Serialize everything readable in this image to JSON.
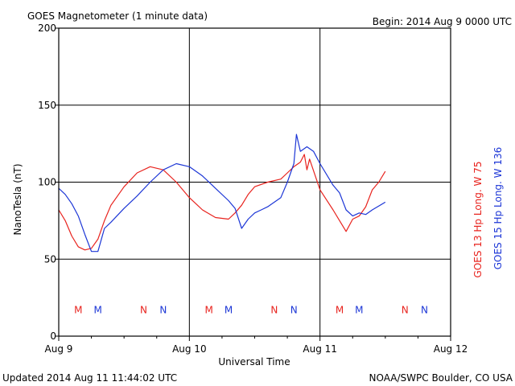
{
  "header": {
    "title": "GOES Magnetometer (1 minute data)",
    "begin": "Begin:  2014 Aug 9 0000 UTC"
  },
  "footer": {
    "updated": "Updated 2014 Aug 11 11:44:02 UTC",
    "source": "NOAA/SWPC Boulder, CO USA"
  },
  "chart_data": {
    "type": "line",
    "title": "GOES Magnetometer (1 minute data)",
    "xlabel": "Universal Time",
    "ylabel": "NanoTesla (nT)",
    "ylim": [
      0,
      200
    ],
    "yticks": [
      0,
      50,
      100,
      150,
      200
    ],
    "xlim_days": [
      0,
      3
    ],
    "xtick_labels": [
      "Aug 9",
      "Aug 10",
      "Aug 11",
      "Aug 12"
    ],
    "grid": true,
    "legend_placement": "right, vertical",
    "colors": {
      "red": "#e8231e",
      "blue": "#1c36d6"
    },
    "series": [
      {
        "name": "GOES 13 Hp  Long. W 75",
        "color": "#e8231e",
        "x": [
          0.0,
          0.05,
          0.1,
          0.15,
          0.2,
          0.25,
          0.3,
          0.35,
          0.4,
          0.5,
          0.6,
          0.7,
          0.8,
          0.9,
          1.0,
          1.1,
          1.2,
          1.3,
          1.35,
          1.4,
          1.45,
          1.5,
          1.6,
          1.7,
          1.75,
          1.8,
          1.85,
          1.88,
          1.9,
          1.92,
          2.0,
          2.1,
          2.15,
          2.2,
          2.25,
          2.3,
          2.35,
          2.4,
          2.45,
          2.5
        ],
        "y": [
          82,
          75,
          65,
          58,
          56,
          57,
          63,
          75,
          85,
          97,
          106,
          110,
          108,
          100,
          90,
          82,
          77,
          76,
          80,
          85,
          92,
          97,
          100,
          102,
          106,
          110,
          113,
          118,
          108,
          115,
          95,
          82,
          75,
          68,
          76,
          78,
          84,
          95,
          100,
          107
        ]
      },
      {
        "name": "GOES 15 Hp  Long. W 136",
        "color": "#1c36d6",
        "x": [
          0.0,
          0.05,
          0.1,
          0.15,
          0.2,
          0.25,
          0.3,
          0.35,
          0.4,
          0.5,
          0.6,
          0.7,
          0.8,
          0.9,
          1.0,
          1.1,
          1.2,
          1.3,
          1.35,
          1.4,
          1.45,
          1.5,
          1.55,
          1.6,
          1.7,
          1.75,
          1.8,
          1.82,
          1.85,
          1.9,
          1.95,
          2.0,
          2.1,
          2.15,
          2.2,
          2.25,
          2.3,
          2.35,
          2.4,
          2.5
        ],
        "y": [
          96,
          92,
          86,
          78,
          66,
          55,
          55,
          70,
          74,
          83,
          91,
          100,
          108,
          112,
          110,
          104,
          96,
          88,
          83,
          70,
          76,
          80,
          82,
          84,
          90,
          100,
          112,
          131,
          120,
          123,
          120,
          112,
          98,
          93,
          82,
          78,
          80,
          79,
          82,
          87
        ]
      }
    ],
    "markers": [
      {
        "label": "M",
        "x": 0.15,
        "color": "#e8231e"
      },
      {
        "label": "M",
        "x": 0.3,
        "color": "#1c36d6"
      },
      {
        "label": "N",
        "x": 0.65,
        "color": "#e8231e"
      },
      {
        "label": "N",
        "x": 0.8,
        "color": "#1c36d6"
      },
      {
        "label": "M",
        "x": 1.15,
        "color": "#e8231e"
      },
      {
        "label": "M",
        "x": 1.3,
        "color": "#1c36d6"
      },
      {
        "label": "N",
        "x": 1.65,
        "color": "#e8231e"
      },
      {
        "label": "N",
        "x": 1.8,
        "color": "#1c36d6"
      },
      {
        "label": "M",
        "x": 2.15,
        "color": "#e8231e"
      },
      {
        "label": "M",
        "x": 2.3,
        "color": "#1c36d6"
      },
      {
        "label": "N",
        "x": 2.65,
        "color": "#e8231e"
      },
      {
        "label": "N",
        "x": 2.8,
        "color": "#1c36d6"
      }
    ],
    "marker_y": 17
  }
}
